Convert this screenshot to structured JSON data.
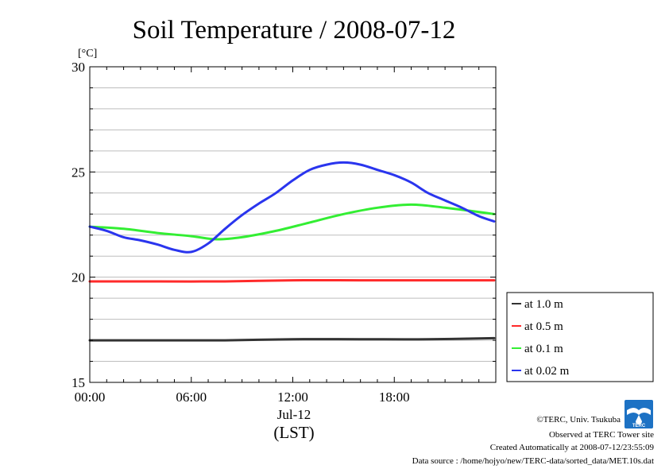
{
  "chart_data": {
    "type": "line",
    "title": "Soil Temperature / 2008-07-12",
    "ylabel": "[°C]",
    "y_unit_label": "[°C]",
    "xlabel": "(LST)",
    "date_label": "Jul-12",
    "xlim": [
      0,
      24
    ],
    "ylim": [
      15,
      30
    ],
    "x_ticks": [
      {
        "value": 0,
        "label": "00:00"
      },
      {
        "value": 6,
        "label": "06:00"
      },
      {
        "value": 12,
        "label": "12:00"
      },
      {
        "value": 18,
        "label": "18:00"
      }
    ],
    "y_ticks": [
      {
        "value": 15,
        "label": "15"
      },
      {
        "value": 20,
        "label": "20"
      },
      {
        "value": 25,
        "label": "25"
      },
      {
        "value": 30,
        "label": "30"
      }
    ],
    "grid": "horizontal",
    "legend_position": "right",
    "series": [
      {
        "name": "at 1.0 m",
        "color": "#333333",
        "x": [
          0,
          4,
          8,
          12,
          16,
          20,
          23.9
        ],
        "y": [
          17.0,
          17.0,
          17.0,
          17.05,
          17.05,
          17.05,
          17.1
        ]
      },
      {
        "name": "at 0.5 m",
        "color": "#ff2a2a",
        "x": [
          0,
          4,
          8,
          12,
          16,
          20,
          23.9
        ],
        "y": [
          19.8,
          19.8,
          19.8,
          19.85,
          19.85,
          19.85,
          19.85
        ]
      },
      {
        "name": "at 0.1 m",
        "color": "#33ee33",
        "x": [
          0,
          2,
          4,
          6,
          7.5,
          9,
          11,
          13,
          15,
          17,
          19,
          21,
          23.9
        ],
        "y": [
          22.4,
          22.3,
          22.1,
          21.95,
          21.8,
          21.9,
          22.2,
          22.6,
          23.0,
          23.3,
          23.45,
          23.3,
          23.0
        ]
      },
      {
        "name": "at 0.02 m",
        "color": "#2a35ee",
        "x": [
          0,
          1,
          2,
          3,
          4,
          5,
          6,
          7,
          8,
          9,
          10,
          11,
          12,
          13,
          14,
          15,
          16,
          17,
          18,
          19,
          20,
          21,
          22,
          23,
          23.9
        ],
        "y": [
          22.4,
          22.2,
          21.9,
          21.75,
          21.55,
          21.3,
          21.2,
          21.6,
          22.3,
          22.95,
          23.5,
          24.0,
          24.6,
          25.1,
          25.35,
          25.45,
          25.35,
          25.1,
          24.85,
          24.5,
          24.0,
          23.65,
          23.3,
          22.9,
          22.65
        ]
      }
    ]
  },
  "credits": {
    "copyright": "©TERC, Univ. Tsukuba",
    "observed": "Observed at TERC Tower site",
    "created": "Created Automatically at 2008-07-12/23:55:09",
    "source": "Data source : /home/hojyo/new/TERC-data/sorted_data/MET.10s.dat",
    "logo_text": "TERC"
  }
}
